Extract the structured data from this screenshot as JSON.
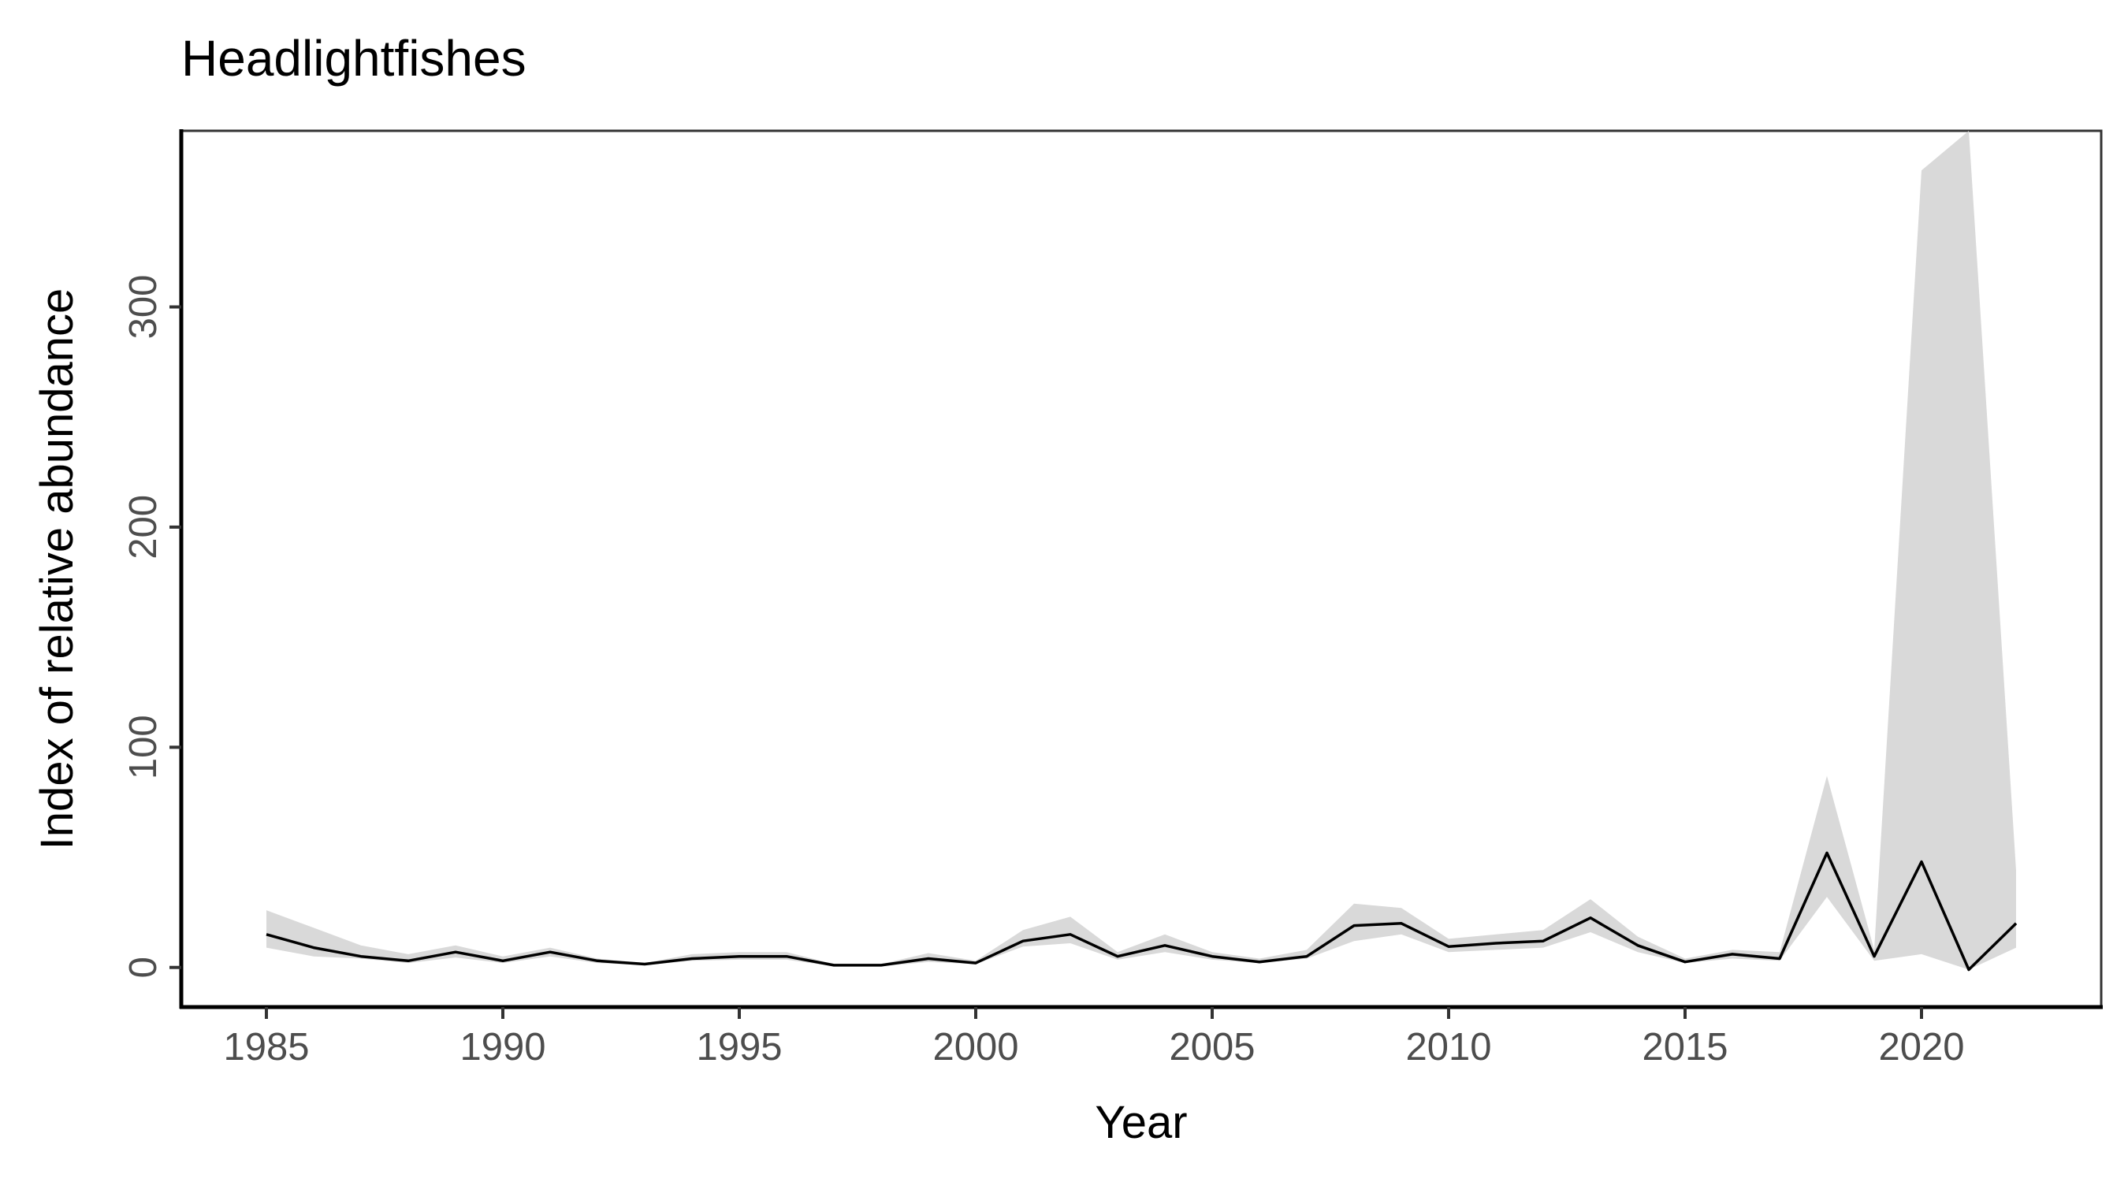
{
  "chart_data": {
    "type": "line",
    "title": "Headlightfishes",
    "xlabel": "Year",
    "ylabel": "Index of relative abundance",
    "xlim": [
      1983.2,
      2023.8
    ],
    "ylim": [
      -18,
      380
    ],
    "x_ticks": [
      1985,
      1990,
      1995,
      2000,
      2005,
      2010,
      2015,
      2020
    ],
    "y_ticks": [
      0,
      100,
      200,
      300
    ],
    "grid": false,
    "legend": "none",
    "colors": {
      "line": "#000000",
      "ribbon": "#d9d9d9",
      "axis": "#000000"
    },
    "series": [
      {
        "x": [
          1985,
          1986,
          1987,
          1988,
          1989,
          1990,
          1991,
          1992,
          1993,
          1994,
          1995,
          1996,
          1997,
          1998,
          1999,
          2000,
          2001,
          2002,
          2003,
          2004,
          2005,
          2006,
          2007,
          2008,
          2009,
          2010,
          2011,
          2012,
          2013,
          2014,
          2015,
          2016,
          2017,
          2018,
          2019,
          2020,
          2021,
          2022
        ],
        "y": [
          15,
          9,
          5,
          3,
          7,
          3,
          7,
          3,
          1.5,
          4,
          5,
          5,
          1,
          1,
          4,
          2,
          12,
          15,
          5,
          10,
          5,
          2.5,
          5,
          19,
          20,
          9.5,
          11,
          12,
          22.5,
          10,
          2.5,
          6,
          4,
          52,
          5,
          48,
          -1,
          20
        ],
        "lower": [
          9,
          5,
          4,
          2,
          4.5,
          2,
          5,
          2,
          1,
          3,
          3.5,
          3.5,
          0.5,
          0.5,
          2.5,
          1.5,
          9.5,
          11,
          3.5,
          7,
          3.5,
          2,
          4,
          12,
          15,
          7,
          8,
          9,
          16,
          7,
          2,
          4,
          3,
          32,
          3,
          6,
          -1,
          9
        ],
        "upper": [
          26,
          18,
          10,
          6,
          10,
          5,
          9,
          4,
          2,
          6,
          7,
          7,
          1.5,
          1.5,
          6.5,
          3,
          17,
          23,
          7,
          15,
          7,
          4,
          8,
          29,
          27,
          13,
          15,
          17,
          31,
          14,
          4,
          8,
          7,
          87,
          8,
          362,
          385,
          44
        ]
      }
    ]
  }
}
